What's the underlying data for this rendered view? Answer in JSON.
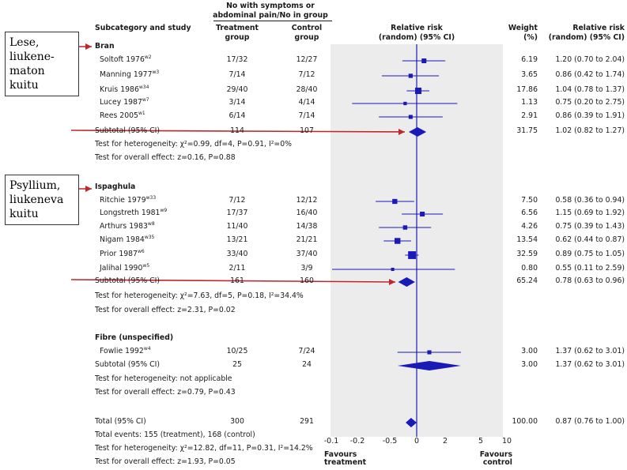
{
  "headers": {
    "subcategory": "Subcategory and study",
    "outcome_top": "No with symptoms or",
    "outcome_bottom": "abdominal pain/No in group",
    "treatment_top": "Treatment",
    "treatment_bottom": "group",
    "control_top": "Control",
    "control_bottom": "group",
    "rr_top": "Relative risk",
    "rr_bottom": "(random) (95% CI)",
    "weight_top": "Weight",
    "weight_bottom": "(%)",
    "rrci_top": "Relative risk",
    "rrci_bottom": "(random) (95% CI)"
  },
  "annotations": [
    "Lese, liukene-maton kuitu",
    "Psyllium, liukeneva kuitu"
  ],
  "chart_data": {
    "type": "forest",
    "axis_ticks": [
      "-0.1",
      "-0.2",
      "-0.5",
      "0",
      "2",
      "5",
      "10"
    ],
    "axis_label_left": "Favours treatment",
    "axis_label_right": "Favours control",
    "groups": [
      {
        "name": "Bran",
        "studies": [
          {
            "name": "Soltoft 1976",
            "ref": "w2",
            "treatment": "17/32",
            "control": "12/27",
            "weight": "6.19",
            "rr_text": "1.20 (0.70 to 2.04)",
            "rr": 1.2,
            "lo": 0.7,
            "hi": 2.04
          },
          {
            "name": "Manning 1977",
            "ref": "w3",
            "treatment": "7/14",
            "control": "7/12",
            "weight": "3.65",
            "rr_text": "0.86 (0.42 to 1.74)",
            "rr": 0.86,
            "lo": 0.42,
            "hi": 1.74
          },
          {
            "name": "Kruis 1986",
            "ref": "w34",
            "treatment": "29/40",
            "control": "28/40",
            "weight": "17.86",
            "rr_text": "1.04 (0.78 to 1.37)",
            "rr": 1.04,
            "lo": 0.78,
            "hi": 1.37
          },
          {
            "name": "Lucey 1987",
            "ref": "w7",
            "treatment": "3/14",
            "control": "4/14",
            "weight": "1.13",
            "rr_text": "0.75 (0.20 to 2.75)",
            "rr": 0.75,
            "lo": 0.2,
            "hi": 2.75
          },
          {
            "name": "Rees 2005",
            "ref": "w1",
            "treatment": "6/14",
            "control": "7/14",
            "weight": "2.91",
            "rr_text": "0.86 (0.39 to 1.91)",
            "rr": 0.86,
            "lo": 0.39,
            "hi": 1.91
          }
        ],
        "subtotal": {
          "label": "Subtotal (95% CI)",
          "treatment": "114",
          "control": "107",
          "weight": "31.75",
          "rr_text": "1.02 (0.82 to 1.27)",
          "rr": 1.02,
          "lo": 0.82,
          "hi": 1.27
        },
        "heterogeneity": "Test for heterogeneity: χ²=0.99, df=4, P=0.91, I²=0%",
        "overall": "Test for overall effect: z=0.16, P=0.88"
      },
      {
        "name": "Ispaghula",
        "studies": [
          {
            "name": "Ritchie 1979",
            "ref": "w33",
            "treatment": "7/12",
            "control": "12/12",
            "weight": "7.50",
            "rr_text": "0.58 (0.36 to 0.94)",
            "rr": 0.58,
            "lo": 0.36,
            "hi": 0.94
          },
          {
            "name": "Longstreth 1981",
            "ref": "w9",
            "treatment": "17/37",
            "control": "16/40",
            "weight": "6.56",
            "rr_text": "1.15 (0.69 to 1.92)",
            "rr": 1.15,
            "lo": 0.69,
            "hi": 1.92
          },
          {
            "name": "Arthurs 1983",
            "ref": "w8",
            "treatment": "11/40",
            "control": "14/38",
            "weight": "4.26",
            "rr_text": "0.75 (0.39 to 1.43)",
            "rr": 0.75,
            "lo": 0.39,
            "hi": 1.43
          },
          {
            "name": "Nigam 1984",
            "ref": "w35",
            "treatment": "13/21",
            "control": "21/21",
            "weight": "13.54",
            "rr_text": "0.62 (0.44 to 0.87)",
            "rr": 0.62,
            "lo": 0.44,
            "hi": 0.87
          },
          {
            "name": "Prior 1987",
            "ref": "w6",
            "treatment": "33/40",
            "control": "37/40",
            "weight": "32.59",
            "rr_text": "0.89 (0.75 to 1.05)",
            "rr": 0.89,
            "lo": 0.75,
            "hi": 1.05
          },
          {
            "name": "Jalihal 1990",
            "ref": "w5",
            "treatment": "2/11",
            "control": "3/9",
            "weight": "0.80",
            "rr_text": "0.55 (0.11 to 2.59)",
            "rr": 0.55,
            "lo": 0.11,
            "hi": 2.59
          }
        ],
        "subtotal": {
          "label": "Subtotal (95% CI)",
          "treatment": "161",
          "control": "160",
          "weight": "65.24",
          "rr_text": "0.78 (0.63 to 0.96)",
          "rr": 0.78,
          "lo": 0.63,
          "hi": 0.96
        },
        "heterogeneity": "Test for heterogeneity: χ²=7.63, df=5, P=0.18, I²=34.4%",
        "overall": "Test for overall effect: z=2.31, P=0.02"
      },
      {
        "name": "Fibre (unspecified)",
        "studies": [
          {
            "name": "Fowlie 1992",
            "ref": "w4",
            "treatment": "10/25",
            "control": "7/24",
            "weight": "3.00",
            "rr_text": "1.37 (0.62 to 3.01)",
            "rr": 1.37,
            "lo": 0.62,
            "hi": 3.01
          }
        ],
        "subtotal": {
          "label": "Subtotal (95% CI)",
          "treatment": "25",
          "control": "24",
          "weight": "3.00",
          "rr_text": "1.37 (0.62 to 3.01)",
          "rr": 1.37,
          "lo": 0.62,
          "hi": 3.01
        },
        "heterogeneity": "Test for heterogeneity: not applicable",
        "overall": "Test for overall effect: z=0.79, P=0.43"
      }
    ],
    "total": {
      "label": "Total (95% CI)",
      "treatment": "300",
      "control": "291",
      "weight": "100.00",
      "rr_text": "0.87 (0.76 to 1.00)",
      "rr": 0.87,
      "lo": 0.76,
      "hi": 1.0
    },
    "total_events": "Total events: 155 (treatment), 168 (control)",
    "total_heterogeneity": "Test for heterogeneity: χ²=12.82, df=11, P=0.31, I²=14.2%",
    "total_overall": "Test for overall effect: z=1.93, P=0.05",
    "colors": {
      "marker": "#1a1ab8",
      "line": "#1a1ab8",
      "panel": "#ececec",
      "arrow": "#c0272d"
    }
  }
}
